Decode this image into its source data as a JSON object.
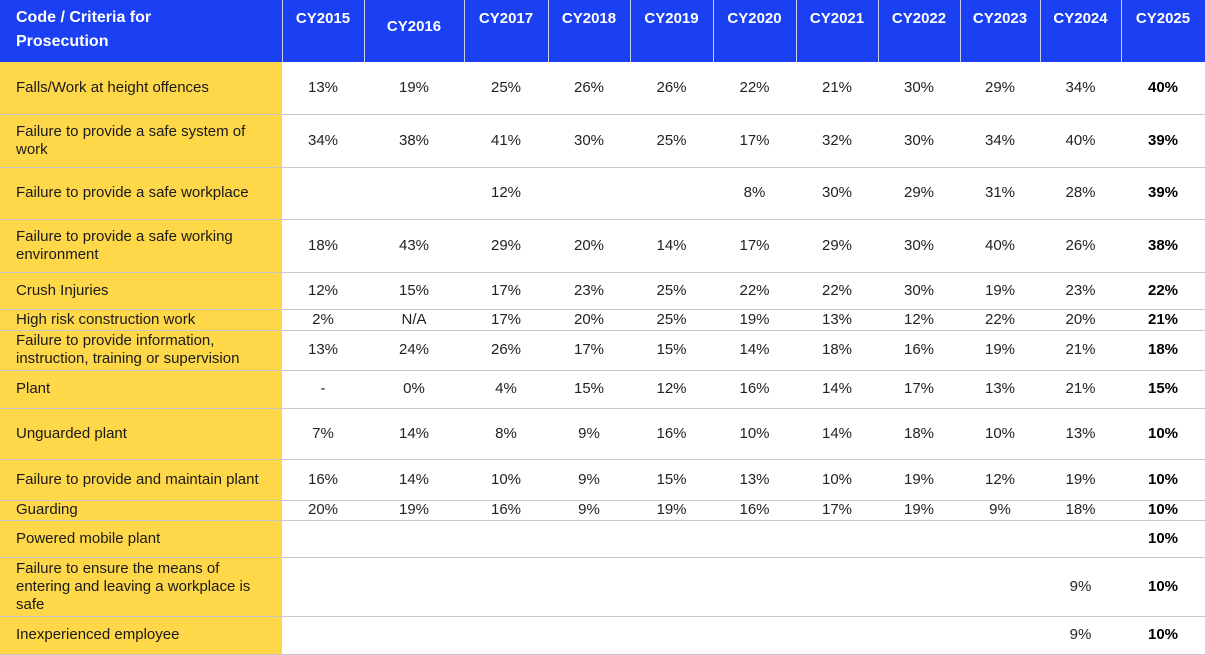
{
  "table": {
    "header": [
      "Code / Criteria for Prosecution",
      "CY2015",
      "CY2016",
      "CY2017",
      "CY2018",
      "CY2019",
      "CY2020",
      "CY2021",
      "CY2022",
      "CY2023",
      "CY2024",
      "CY2025"
    ],
    "rows": [
      {
        "label": "Falls/Work at height offences",
        "values": [
          "13%",
          "19%",
          "25%",
          "26%",
          "26%",
          "22%",
          "21%",
          "30%",
          "29%",
          "34%",
          "40%"
        ]
      },
      {
        "label": "Failure to provide a safe system of work",
        "values": [
          "34%",
          "38%",
          "41%",
          "30%",
          "25%",
          "17%",
          "32%",
          "30%",
          "34%",
          "40%",
          "39%"
        ]
      },
      {
        "label": "Failure to provide a safe workplace",
        "values": [
          null,
          null,
          "12%",
          null,
          null,
          "8%",
          "30%",
          "29%",
          "31%",
          "28%",
          "39%"
        ]
      },
      {
        "label": "Failure to provide a safe working environment",
        "values": [
          "18%",
          "43%",
          "29%",
          "20%",
          "14%",
          "17%",
          "29%",
          "30%",
          "40%",
          "26%",
          "38%"
        ]
      },
      {
        "label": "Crush Injuries",
        "values": [
          "12%",
          "15%",
          "17%",
          "23%",
          "25%",
          "22%",
          "22%",
          "30%",
          "19%",
          "23%",
          "22%"
        ]
      },
      {
        "label": "High risk construction work",
        "values": [
          "2%",
          "N/A",
          "17%",
          "20%",
          "25%",
          "19%",
          "13%",
          "12%",
          "22%",
          "20%",
          "21%"
        ]
      },
      {
        "label": "Failure to provide information, instruction, training or supervision",
        "values": [
          "13%",
          "24%",
          "26%",
          "17%",
          "15%",
          "14%",
          "18%",
          "16%",
          "19%",
          "21%",
          "18%"
        ]
      },
      {
        "label": "Plant",
        "values": [
          "-",
          "0%",
          "4%",
          "15%",
          "12%",
          "16%",
          "14%",
          "17%",
          "13%",
          "21%",
          "15%"
        ]
      },
      {
        "label": "Unguarded plant",
        "values": [
          "7%",
          "14%",
          "8%",
          "9%",
          "16%",
          "10%",
          "14%",
          "18%",
          "10%",
          "13%",
          "10%"
        ]
      },
      {
        "label": "Failure to provide and maintain plant",
        "values": [
          "16%",
          "14%",
          "10%",
          "9%",
          "15%",
          "13%",
          "10%",
          "19%",
          "12%",
          "19%",
          "10%"
        ]
      },
      {
        "label": "Guarding",
        "values": [
          "20%",
          "19%",
          "16%",
          "9%",
          "19%",
          "16%",
          "17%",
          "19%",
          "9%",
          "18%",
          "10%"
        ]
      },
      {
        "label": "Powered mobile plant",
        "values": [
          null,
          null,
          null,
          null,
          null,
          null,
          null,
          null,
          null,
          null,
          "10%"
        ]
      },
      {
        "label": "Failure to ensure the means of entering and leaving a workplace is safe",
        "values": [
          null,
          null,
          null,
          null,
          null,
          null,
          null,
          null,
          null,
          "9%",
          "10%"
        ]
      },
      {
        "label": "Inexperienced employee",
        "values": [
          null,
          null,
          null,
          null,
          null,
          null,
          null,
          null,
          null,
          "9%",
          "10%"
        ]
      }
    ]
  }
}
